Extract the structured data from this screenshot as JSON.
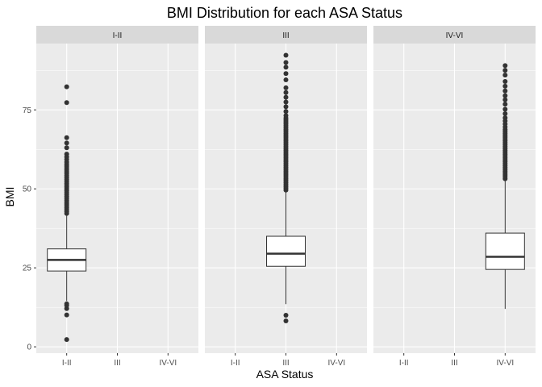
{
  "chart_data": {
    "type": "boxplot",
    "title": "BMI Distribution for each ASA Status",
    "xlabel": "ASA Status",
    "ylabel": "BMI",
    "ylim": [
      -2,
      96
    ],
    "y_ticks": [
      0,
      25,
      50,
      75
    ],
    "categories": [
      "I-II",
      "III",
      "IV-VI"
    ],
    "facets": [
      {
        "label": "I-II",
        "category": "I-II",
        "box": {
          "whisker_low": 14.5,
          "q1": 24.0,
          "median": 27.5,
          "q3": 31.0,
          "whisker_high": 41.5
        },
        "outliers": [
          2.3,
          10.1,
          12.1,
          13.1,
          13.6,
          42.2,
          42.8,
          43.4,
          44.0,
          44.6,
          45.2,
          45.8,
          46.4,
          47.0,
          47.6,
          48.2,
          48.8,
          49.4,
          50.0,
          50.6,
          51.2,
          51.8,
          52.4,
          53.0,
          53.6,
          54.2,
          54.8,
          55.4,
          56.0,
          56.6,
          57.2,
          57.8,
          58.5,
          59.3,
          60.1,
          61.0,
          63.0,
          64.5,
          66.2,
          77.3,
          82.3
        ]
      },
      {
        "label": "III",
        "category": "III",
        "box": {
          "whisker_low": 13.5,
          "q1": 25.5,
          "median": 29.5,
          "q3": 35.0,
          "whisker_high": 49.0
        },
        "outliers": [
          8.2,
          10.0,
          49.6,
          50.2,
          50.8,
          51.4,
          52.0,
          52.6,
          53.2,
          53.8,
          54.4,
          55.0,
          55.6,
          56.2,
          56.8,
          57.4,
          58.0,
          58.6,
          59.2,
          59.8,
          60.4,
          61.0,
          61.6,
          62.2,
          62.8,
          63.4,
          64.0,
          64.6,
          65.2,
          65.8,
          66.4,
          67.0,
          67.6,
          68.2,
          68.8,
          69.4,
          70.0,
          70.6,
          71.2,
          71.8,
          72.4,
          73.2,
          74.5,
          76.0,
          77.5,
          79.0,
          80.5,
          82.0,
          84.5,
          86.5,
          88.5,
          90.0,
          92.3
        ]
      },
      {
        "label": "IV-VI",
        "category": "IV-VI",
        "box": {
          "whisker_low": 12.0,
          "q1": 24.5,
          "median": 28.5,
          "q3": 36.0,
          "whisker_high": 52.5
        },
        "outliers": [
          53.2,
          53.8,
          54.4,
          55.0,
          55.6,
          56.2,
          56.8,
          57.4,
          58.0,
          58.6,
          59.2,
          59.8,
          60.4,
          61.0,
          61.6,
          62.2,
          62.8,
          63.4,
          64.0,
          64.6,
          65.2,
          65.8,
          66.4,
          67.0,
          67.6,
          68.2,
          68.8,
          69.6,
          70.5,
          71.5,
          72.5,
          73.8,
          75.2,
          76.8,
          78.2,
          79.5,
          81.0,
          82.5,
          84.0,
          86.0,
          87.5,
          89.0
        ]
      }
    ]
  },
  "colors": {
    "panel_bg": "#ebebeb",
    "strip_bg": "#d9d9d9",
    "grid": "#ffffff",
    "box_fill": "#ffffff",
    "box_line": "#333333",
    "outlier": "#333333",
    "tick": "#333333"
  }
}
